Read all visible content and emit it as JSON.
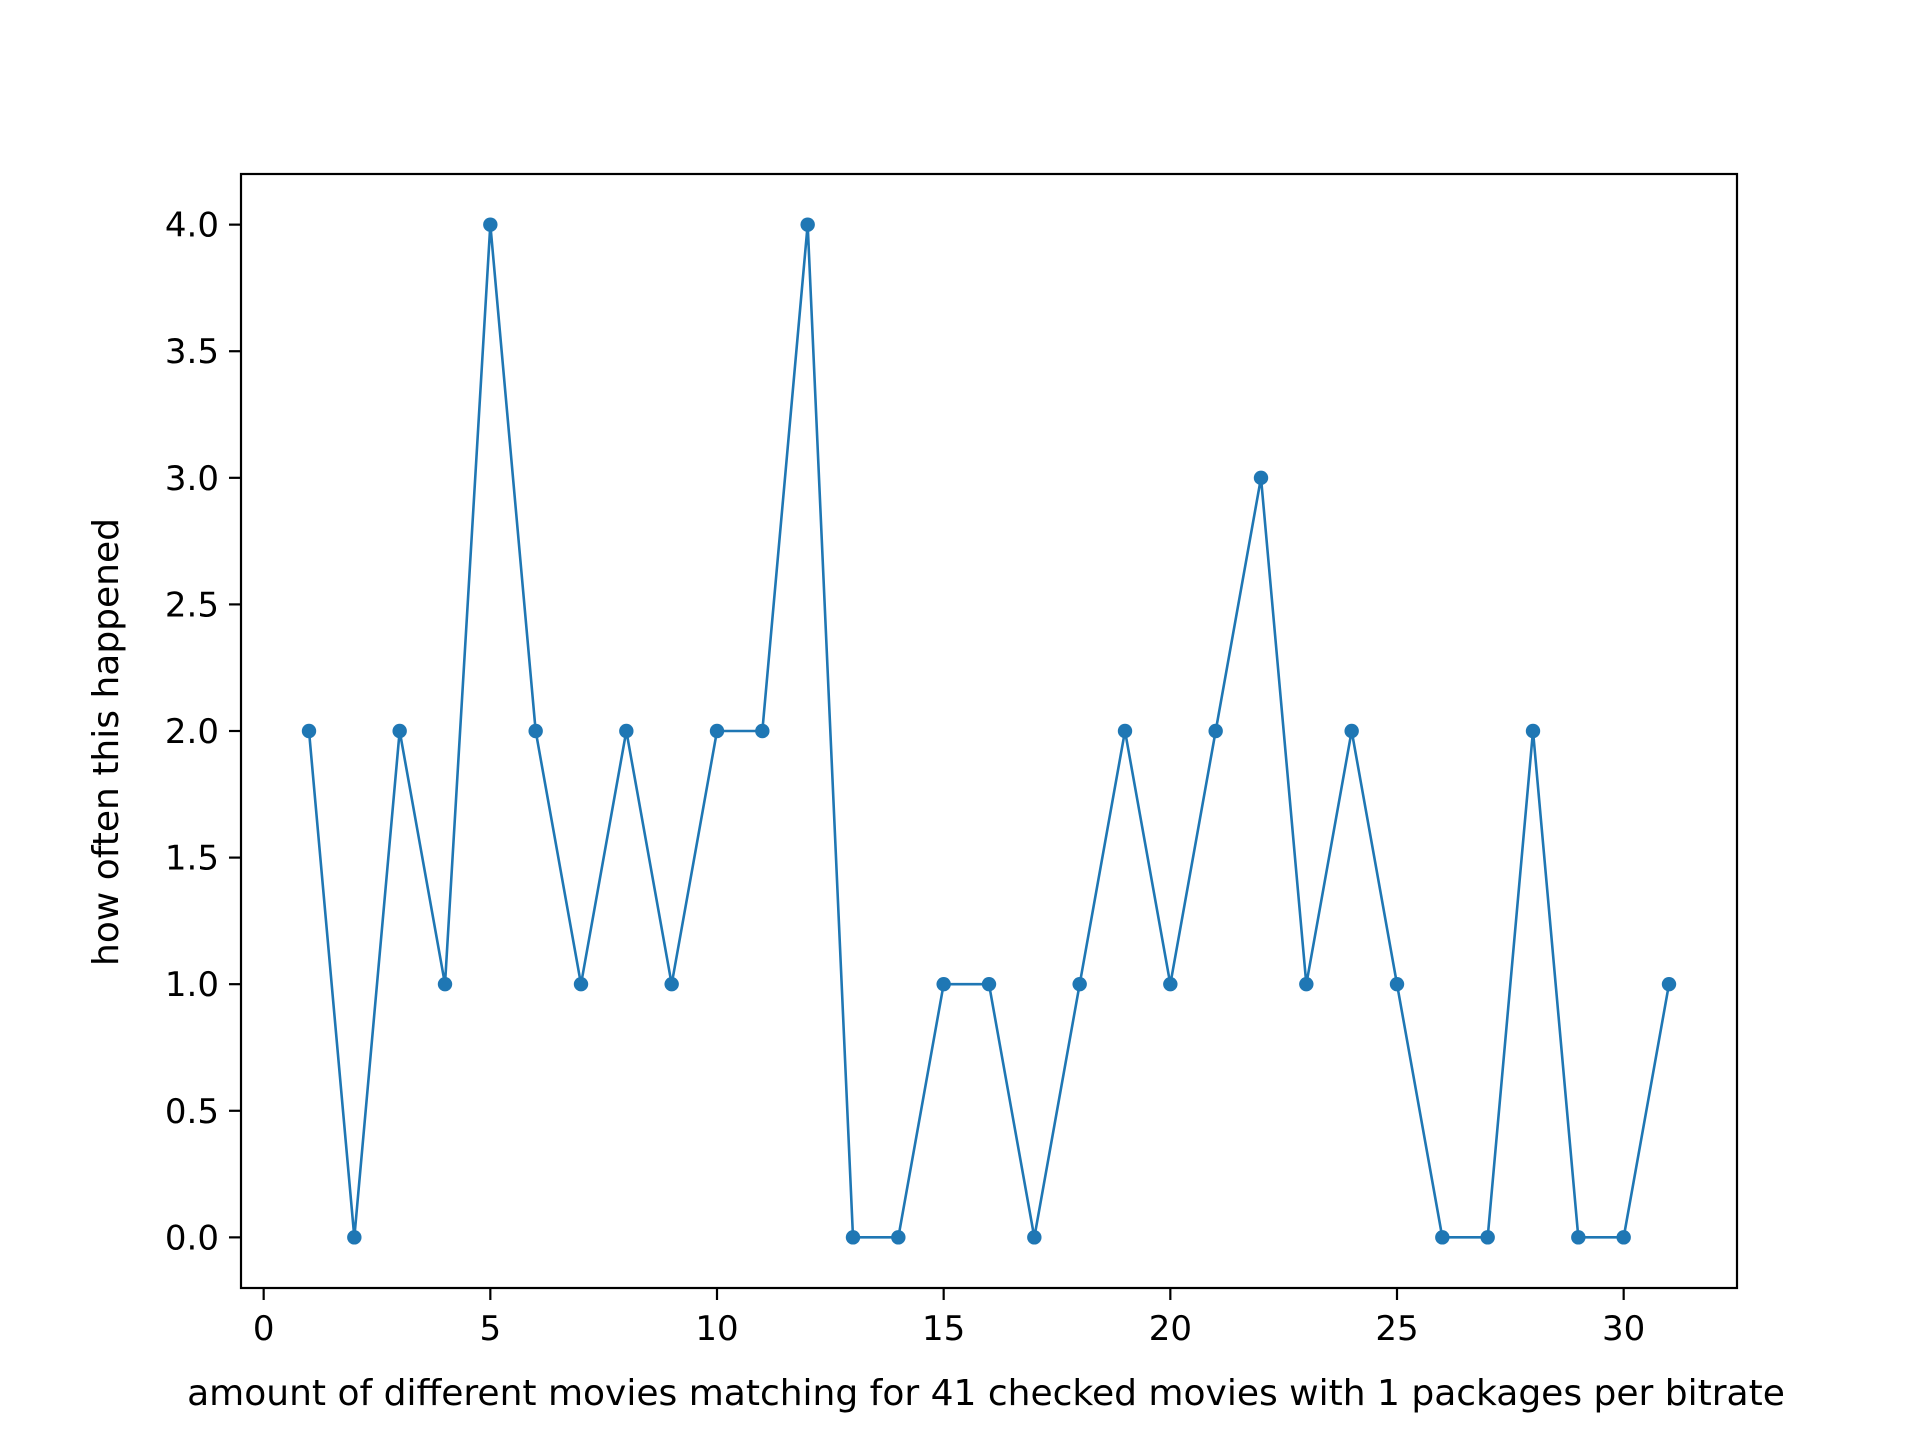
{
  "chart_data": {
    "type": "line",
    "title": "",
    "xlabel": "amount of different movies matching for 41 checked movies with 1 packages per bitrate",
    "ylabel": "how often this happened",
    "xlim": [
      -0.5,
      32.5
    ],
    "ylim": [
      -0.2,
      4.2
    ],
    "xticks": [
      0,
      5,
      10,
      15,
      20,
      25,
      30
    ],
    "yticks": [
      0.0,
      0.5,
      1.0,
      1.5,
      2.0,
      2.5,
      3.0,
      3.5,
      4.0
    ],
    "ytick_labels": [
      "0.0",
      "0.5",
      "1.0",
      "1.5",
      "2.0",
      "2.5",
      "3.0",
      "3.5",
      "4.0"
    ],
    "grid": false,
    "legend": false,
    "series": [
      {
        "color": "#1f77b4",
        "marker": "dot",
        "x": [
          1,
          2,
          3,
          4,
          5,
          6,
          7,
          8,
          9,
          10,
          11,
          12,
          13,
          14,
          15,
          16,
          17,
          18,
          19,
          20,
          21,
          22,
          23,
          24,
          25,
          26,
          27,
          28,
          29,
          30,
          31
        ],
        "y": [
          2,
          0,
          2,
          1,
          4,
          2,
          1,
          2,
          1,
          2,
          2,
          4,
          0,
          0,
          1,
          1,
          0,
          1,
          2,
          1,
          2,
          3,
          1,
          2,
          1,
          0,
          0,
          2,
          0,
          0,
          1
        ]
      }
    ]
  }
}
